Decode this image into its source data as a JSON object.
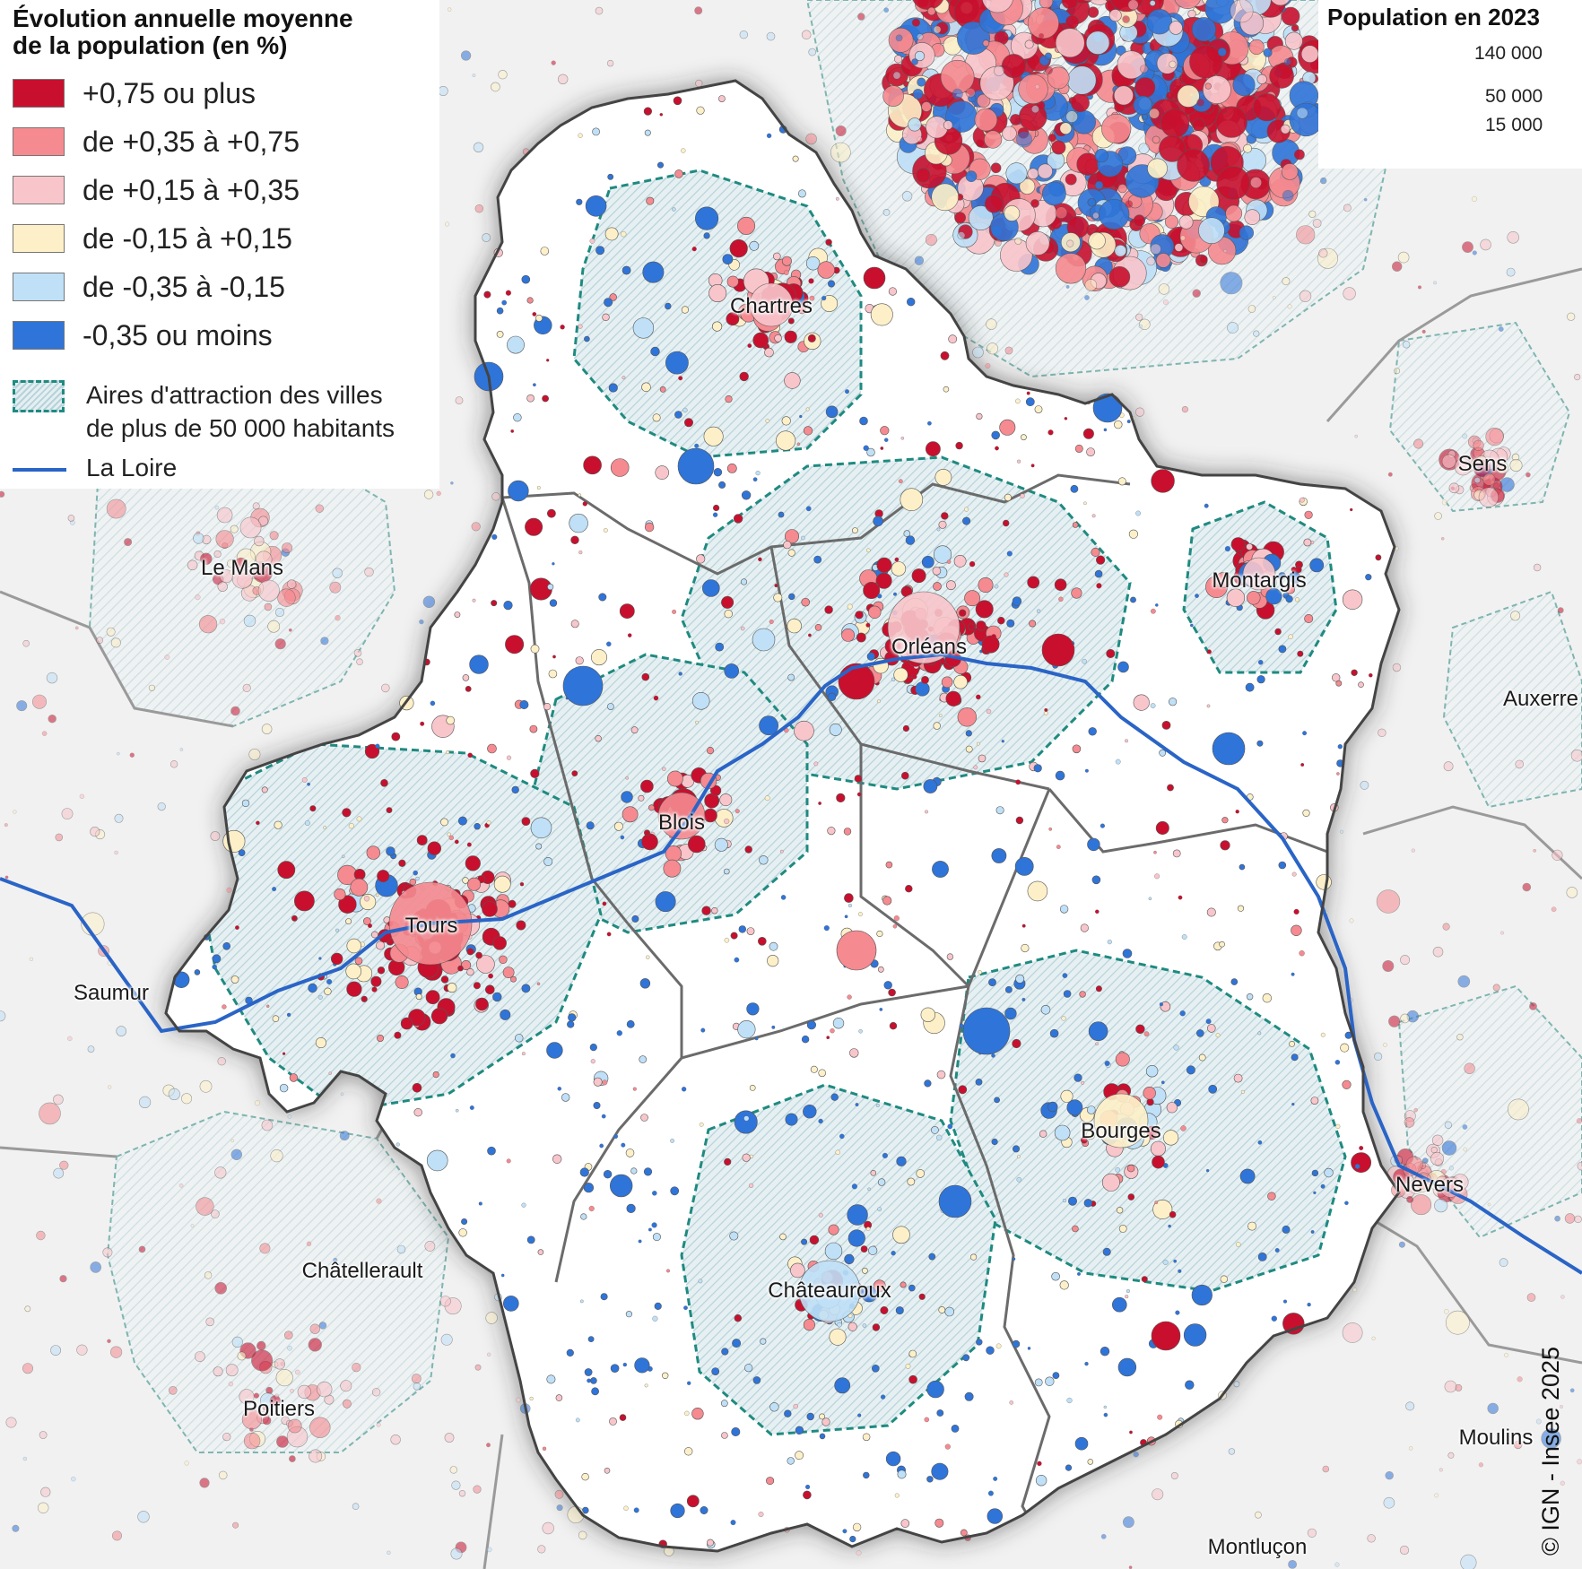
{
  "legend": {
    "title_line1": "Évolution annuelle moyenne",
    "title_line2": "de la population (en %)",
    "classes": [
      {
        "label": "+0,75 ou plus",
        "color": "#c8102e"
      },
      {
        "label": "de +0,35 à +0,75",
        "color": "#f58a90"
      },
      {
        "label": "de +0,15 à +0,35",
        "color": "#f8c5cb"
      },
      {
        "label": "de -0,15 à +0,15",
        "color": "#fdf0c8"
      },
      {
        "label": "de -0,35 à -0,15",
        "color": "#bfe0f7"
      },
      {
        "label": "-0,35 ou moins",
        "color": "#2f74d8"
      }
    ],
    "aires_line1": "Aires d'attraction des villes",
    "aires_line2": "de plus de 50 000 habitants",
    "loire_label": "La Loire"
  },
  "size_legend": {
    "title": "Population en 2023",
    "values": [
      "140 000",
      "50 000",
      "15 000"
    ]
  },
  "colors": {
    "region_fill": "#ffffff",
    "outside_fill": "#f1f1f1",
    "aire_hatch": "#b7d2d9",
    "aire_border": "#1f8a80",
    "loire": "#2a64c6",
    "department_border": "#6b6b6b"
  },
  "cities": [
    {
      "name": "Chartres"
    },
    {
      "name": "Orléans"
    },
    {
      "name": "Montargis"
    },
    {
      "name": "Blois"
    },
    {
      "name": "Tours"
    },
    {
      "name": "Bourges"
    },
    {
      "name": "Châteauroux"
    },
    {
      "name": "Le Mans"
    },
    {
      "name": "Sens"
    },
    {
      "name": "Auxerre"
    },
    {
      "name": "Saumur"
    },
    {
      "name": "Châtellerault"
    },
    {
      "name": "Poitiers"
    },
    {
      "name": "Nevers"
    },
    {
      "name": "Moulins"
    },
    {
      "name": "Montluçon"
    }
  ],
  "credit": "© IGN - Insee 2025"
}
